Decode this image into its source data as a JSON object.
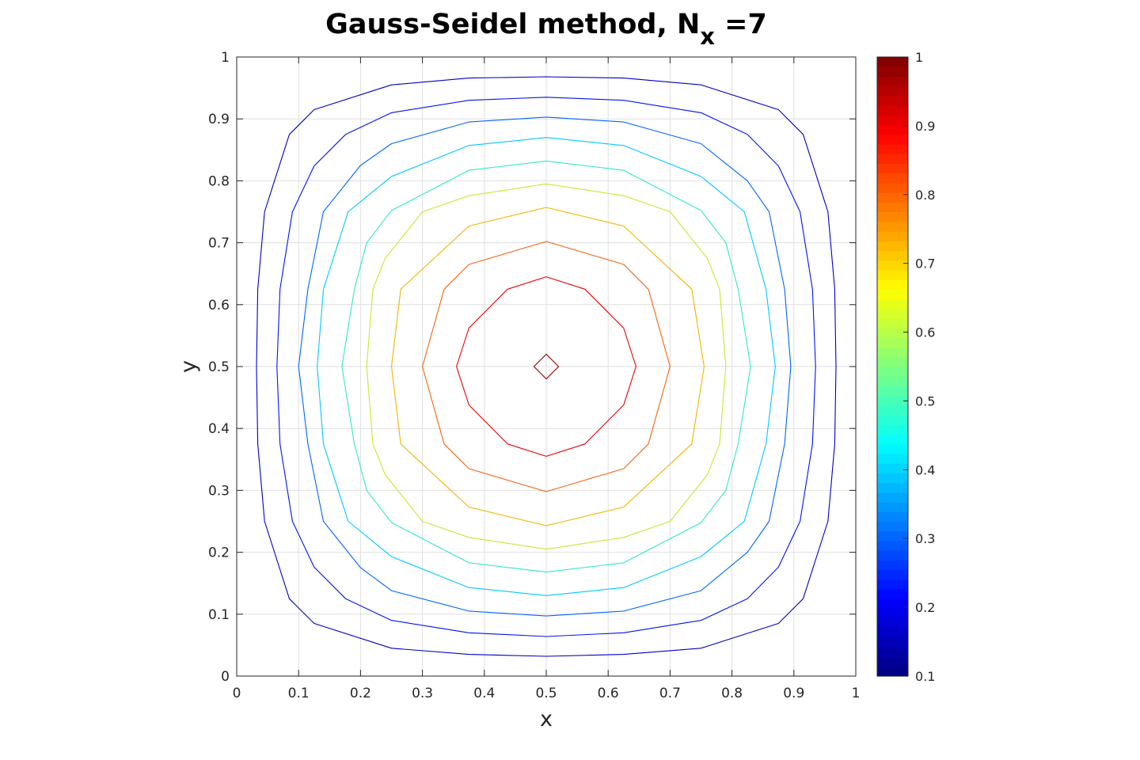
{
  "chart_data": {
    "type": "contour",
    "title": {
      "main": "Gauss-Seidel method, N",
      "subscript": "x",
      "suffix": " =7"
    },
    "xlabel": "x",
    "ylabel": "y",
    "xlim": [
      0,
      1
    ],
    "ylim": [
      0,
      1
    ],
    "xticks": [
      "0",
      "0.1",
      "0.2",
      "0.3",
      "0.4",
      "0.5",
      "0.6",
      "0.7",
      "0.8",
      "0.9",
      "1"
    ],
    "yticks": [
      "0",
      "0.1",
      "0.2",
      "0.3",
      "0.4",
      "0.5",
      "0.6",
      "0.7",
      "0.8",
      "0.9",
      "1"
    ],
    "grid": true,
    "colormap": "jet",
    "colorbar": {
      "position": "right",
      "range": [
        0.1,
        1
      ],
      "ticks": [
        "0.1",
        "0.2",
        "0.3",
        "0.4",
        "0.5",
        "0.6",
        "0.7",
        "0.8",
        "0.9",
        "1"
      ]
    },
    "contour_levels": [
      {
        "level": 0.14,
        "color": "#0000c8",
        "polygon": [
          [
            0.5,
            0.032
          ],
          [
            0.625,
            0.035
          ],
          [
            0.75,
            0.045
          ],
          [
            0.875,
            0.085
          ],
          [
            0.915,
            0.125
          ],
          [
            0.955,
            0.25
          ],
          [
            0.966,
            0.375
          ],
          [
            0.968,
            0.5
          ],
          [
            0.966,
            0.625
          ],
          [
            0.955,
            0.75
          ],
          [
            0.915,
            0.875
          ],
          [
            0.875,
            0.915
          ],
          [
            0.75,
            0.955
          ],
          [
            0.625,
            0.966
          ],
          [
            0.5,
            0.968
          ],
          [
            0.375,
            0.966
          ],
          [
            0.25,
            0.955
          ],
          [
            0.125,
            0.915
          ],
          [
            0.085,
            0.875
          ],
          [
            0.045,
            0.75
          ],
          [
            0.034,
            0.625
          ],
          [
            0.032,
            0.5
          ],
          [
            0.034,
            0.375
          ],
          [
            0.045,
            0.25
          ],
          [
            0.085,
            0.125
          ],
          [
            0.125,
            0.085
          ],
          [
            0.25,
            0.045
          ],
          [
            0.375,
            0.035
          ]
        ]
      },
      {
        "level": 0.22,
        "color": "#0014f0",
        "polygon": [
          [
            0.5,
            0.064
          ],
          [
            0.625,
            0.07
          ],
          [
            0.75,
            0.09
          ],
          [
            0.825,
            0.125
          ],
          [
            0.875,
            0.176
          ],
          [
            0.91,
            0.25
          ],
          [
            0.93,
            0.375
          ],
          [
            0.935,
            0.5
          ],
          [
            0.93,
            0.625
          ],
          [
            0.91,
            0.75
          ],
          [
            0.875,
            0.824
          ],
          [
            0.825,
            0.875
          ],
          [
            0.75,
            0.91
          ],
          [
            0.625,
            0.93
          ],
          [
            0.5,
            0.935
          ],
          [
            0.375,
            0.93
          ],
          [
            0.25,
            0.91
          ],
          [
            0.176,
            0.875
          ],
          [
            0.125,
            0.824
          ],
          [
            0.09,
            0.75
          ],
          [
            0.07,
            0.625
          ],
          [
            0.065,
            0.5
          ],
          [
            0.07,
            0.375
          ],
          [
            0.09,
            0.25
          ],
          [
            0.125,
            0.176
          ],
          [
            0.176,
            0.125
          ],
          [
            0.25,
            0.09
          ],
          [
            0.375,
            0.07
          ]
        ]
      },
      {
        "level": 0.31,
        "color": "#0064ff",
        "polygon": [
          [
            0.5,
            0.097
          ],
          [
            0.625,
            0.105
          ],
          [
            0.75,
            0.138
          ],
          [
            0.825,
            0.2
          ],
          [
            0.86,
            0.25
          ],
          [
            0.885,
            0.375
          ],
          [
            0.895,
            0.5
          ],
          [
            0.885,
            0.625
          ],
          [
            0.86,
            0.75
          ],
          [
            0.825,
            0.8
          ],
          [
            0.75,
            0.86
          ],
          [
            0.625,
            0.895
          ],
          [
            0.5,
            0.903
          ],
          [
            0.375,
            0.895
          ],
          [
            0.25,
            0.86
          ],
          [
            0.2,
            0.825
          ],
          [
            0.14,
            0.75
          ],
          [
            0.115,
            0.625
          ],
          [
            0.1,
            0.5
          ],
          [
            0.115,
            0.375
          ],
          [
            0.14,
            0.25
          ],
          [
            0.2,
            0.175
          ],
          [
            0.25,
            0.138
          ],
          [
            0.375,
            0.105
          ]
        ]
      },
      {
        "level": 0.4,
        "color": "#00c8ff",
        "polygon": [
          [
            0.5,
            0.13
          ],
          [
            0.625,
            0.143
          ],
          [
            0.75,
            0.193
          ],
          [
            0.82,
            0.25
          ],
          [
            0.855,
            0.375
          ],
          [
            0.87,
            0.5
          ],
          [
            0.855,
            0.625
          ],
          [
            0.82,
            0.75
          ],
          [
            0.75,
            0.807
          ],
          [
            0.625,
            0.857
          ],
          [
            0.5,
            0.87
          ],
          [
            0.375,
            0.857
          ],
          [
            0.25,
            0.807
          ],
          [
            0.18,
            0.75
          ],
          [
            0.14,
            0.625
          ],
          [
            0.13,
            0.5
          ],
          [
            0.14,
            0.375
          ],
          [
            0.18,
            0.25
          ],
          [
            0.25,
            0.193
          ],
          [
            0.375,
            0.143
          ]
        ]
      },
      {
        "level": 0.48,
        "color": "#32e6c8",
        "polygon": [
          [
            0.5,
            0.168
          ],
          [
            0.625,
            0.183
          ],
          [
            0.75,
            0.248
          ],
          [
            0.79,
            0.3
          ],
          [
            0.81,
            0.375
          ],
          [
            0.83,
            0.5
          ],
          [
            0.81,
            0.625
          ],
          [
            0.79,
            0.7
          ],
          [
            0.75,
            0.752
          ],
          [
            0.625,
            0.817
          ],
          [
            0.5,
            0.832
          ],
          [
            0.375,
            0.817
          ],
          [
            0.25,
            0.752
          ],
          [
            0.21,
            0.7
          ],
          [
            0.19,
            0.625
          ],
          [
            0.17,
            0.5
          ],
          [
            0.19,
            0.375
          ],
          [
            0.21,
            0.3
          ],
          [
            0.25,
            0.248
          ],
          [
            0.375,
            0.183
          ]
        ]
      },
      {
        "level": 0.61,
        "color": "#c8e632",
        "polygon": [
          [
            0.5,
            0.205
          ],
          [
            0.625,
            0.224
          ],
          [
            0.7,
            0.25
          ],
          [
            0.76,
            0.325
          ],
          [
            0.78,
            0.375
          ],
          [
            0.79,
            0.5
          ],
          [
            0.78,
            0.625
          ],
          [
            0.76,
            0.675
          ],
          [
            0.7,
            0.75
          ],
          [
            0.625,
            0.776
          ],
          [
            0.5,
            0.795
          ],
          [
            0.375,
            0.776
          ],
          [
            0.3,
            0.75
          ],
          [
            0.24,
            0.675
          ],
          [
            0.22,
            0.625
          ],
          [
            0.21,
            0.5
          ],
          [
            0.22,
            0.375
          ],
          [
            0.24,
            0.325
          ],
          [
            0.3,
            0.25
          ],
          [
            0.375,
            0.224
          ]
        ]
      },
      {
        "level": 0.7,
        "color": "#f0b400",
        "polygon": [
          [
            0.5,
            0.243
          ],
          [
            0.625,
            0.273
          ],
          [
            0.735,
            0.375
          ],
          [
            0.755,
            0.5
          ],
          [
            0.735,
            0.625
          ],
          [
            0.625,
            0.727
          ],
          [
            0.5,
            0.757
          ],
          [
            0.375,
            0.727
          ],
          [
            0.265,
            0.625
          ],
          [
            0.25,
            0.5
          ],
          [
            0.265,
            0.375
          ],
          [
            0.375,
            0.273
          ]
        ]
      },
      {
        "level": 0.78,
        "color": "#f06414",
        "polygon": [
          [
            0.5,
            0.298
          ],
          [
            0.625,
            0.335
          ],
          [
            0.665,
            0.375
          ],
          [
            0.7,
            0.5
          ],
          [
            0.665,
            0.625
          ],
          [
            0.625,
            0.665
          ],
          [
            0.5,
            0.702
          ],
          [
            0.375,
            0.665
          ],
          [
            0.335,
            0.625
          ],
          [
            0.3,
            0.5
          ],
          [
            0.335,
            0.375
          ],
          [
            0.375,
            0.335
          ]
        ]
      },
      {
        "level": 0.9,
        "color": "#e60000",
        "polygon": [
          [
            0.5,
            0.355
          ],
          [
            0.5625,
            0.375
          ],
          [
            0.625,
            0.438
          ],
          [
            0.645,
            0.5
          ],
          [
            0.625,
            0.562
          ],
          [
            0.5625,
            0.625
          ],
          [
            0.5,
            0.645
          ],
          [
            0.4375,
            0.625
          ],
          [
            0.375,
            0.562
          ],
          [
            0.355,
            0.5
          ],
          [
            0.375,
            0.438
          ],
          [
            0.4375,
            0.375
          ]
        ]
      },
      {
        "level": 1.0,
        "color": "#8c0000",
        "polygon": [
          [
            0.5,
            0.48
          ],
          [
            0.52,
            0.5
          ],
          [
            0.5,
            0.52
          ],
          [
            0.48,
            0.5
          ]
        ]
      }
    ]
  }
}
